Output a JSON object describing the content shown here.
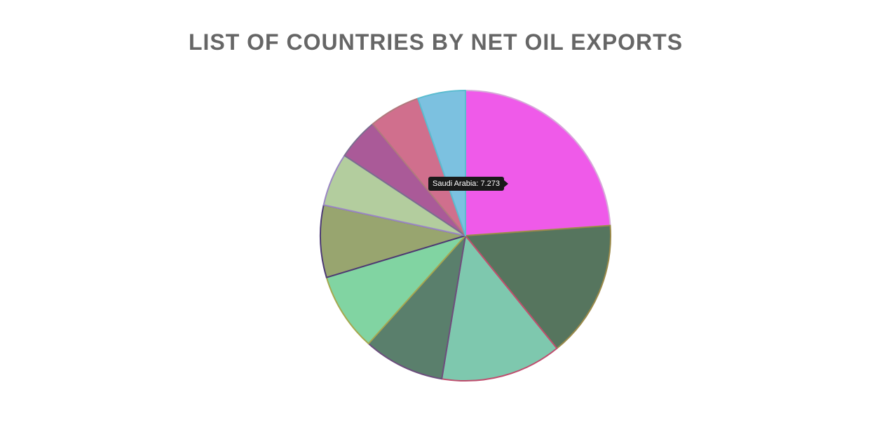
{
  "chart_data": {
    "type": "pie",
    "title": "LIST OF COUNTRIES BY NET OIL EXPORTS",
    "slices": [
      {
        "label": "Saudi Arabia",
        "value": 7.273,
        "color": "#ef5ae9",
        "border": "#d6a9d9"
      },
      {
        "label": "",
        "value": 4.65,
        "color": "#56755e",
        "border": "#9b8a4a"
      },
      {
        "label": "",
        "value": 4.1,
        "color": "#7ec8ae",
        "border": "#c04d6e"
      },
      {
        "label": "",
        "value": 2.75,
        "color": "#5a7f6c",
        "border": "#6c4e7d"
      },
      {
        "label": "",
        "value": 2.65,
        "color": "#81d4a2",
        "border": "#a6a84f"
      },
      {
        "label": "",
        "value": 2.45,
        "color": "#98a56f",
        "border": "#4c3a74"
      },
      {
        "label": "",
        "value": 1.8,
        "color": "#b3cd9e",
        "border": "#9b87c4"
      },
      {
        "label": "",
        "value": 1.42,
        "color": "#aa5a98",
        "border": "#7b6d8f"
      },
      {
        "label": "",
        "value": 1.74,
        "color": "#d06f8d",
        "border": "#b07a7d"
      },
      {
        "label": "",
        "value": 1.62,
        "color": "#7cc1e0",
        "border": "#5bbcd0"
      }
    ]
  },
  "tooltip": {
    "text": "Saudi Arabia: 7.273"
  }
}
